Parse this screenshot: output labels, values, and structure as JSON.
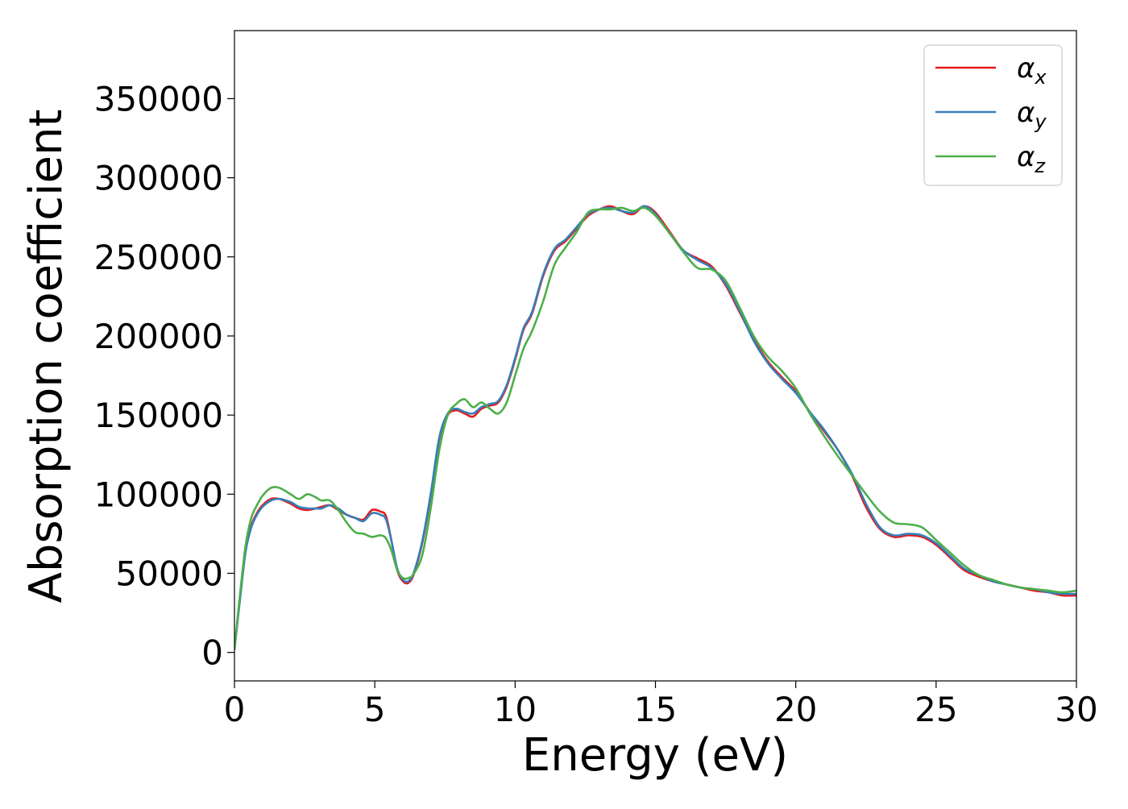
{
  "chart_data": {
    "type": "line",
    "title": "",
    "xlabel": "Energy (eV)",
    "ylabel": "Absorption coefficient",
    "xlim": [
      0,
      30
    ],
    "ylim": [
      -18000,
      393000
    ],
    "xticks": [
      0,
      5,
      10,
      15,
      20,
      25,
      30
    ],
    "yticks": [
      0,
      50000,
      100000,
      150000,
      200000,
      250000,
      300000,
      350000
    ],
    "grid": false,
    "legend_position": "top-right",
    "series": [
      {
        "name": "α_x",
        "name_base": "α",
        "name_sub": "x",
        "color": "#e41a1c",
        "x": [
          0,
          0.2,
          0.4,
          0.6,
          0.8,
          1.0,
          1.3,
          1.6,
          2.0,
          2.3,
          2.6,
          2.9,
          3.1,
          3.4,
          3.7,
          4.0,
          4.3,
          4.6,
          4.9,
          5.2,
          5.4,
          5.6,
          5.8,
          6.0,
          6.2,
          6.4,
          6.7,
          7.0,
          7.3,
          7.6,
          7.9,
          8.2,
          8.5,
          8.8,
          9.1,
          9.4,
          9.7,
          10.0,
          10.3,
          10.6,
          11.0,
          11.4,
          11.8,
          12.2,
          12.6,
          13.0,
          13.4,
          13.8,
          14.2,
          14.6,
          15.0,
          15.5,
          16.0,
          16.5,
          17.0,
          17.5,
          18.0,
          18.5,
          19.0,
          19.5,
          20.0,
          20.5,
          21.0,
          21.5,
          22.0,
          22.5,
          23.0,
          23.5,
          24.0,
          24.5,
          25.0,
          25.5,
          26.0,
          26.5,
          27.0,
          27.5,
          28.0,
          28.5,
          29.0,
          29.5,
          30.0
        ],
        "values": [
          2000,
          35000,
          65000,
          80000,
          88000,
          93000,
          97000,
          97000,
          94000,
          91000,
          90000,
          91000,
          92000,
          93000,
          90000,
          87000,
          85000,
          84000,
          90000,
          89000,
          86000,
          70000,
          52000,
          45000,
          44000,
          50000,
          70000,
          100000,
          135000,
          150000,
          153000,
          151000,
          149000,
          154000,
          156000,
          158000,
          168000,
          185000,
          204000,
          214000,
          238000,
          254000,
          260000,
          268000,
          276000,
          280000,
          282000,
          279000,
          277000,
          282000,
          278000,
          266000,
          254000,
          249000,
          244000,
          232000,
          215000,
          198000,
          184000,
          174000,
          165000,
          152000,
          140000,
          128000,
          112000,
          92000,
          78000,
          73000,
          74000,
          73000,
          68000,
          60000,
          52000,
          48000,
          45000,
          43000,
          41000,
          39000,
          38000,
          36000,
          36000
        ]
      },
      {
        "name": "α_y",
        "name_base": "α",
        "name_sub": "y",
        "color": "#377eb8",
        "x": [
          0,
          0.2,
          0.4,
          0.6,
          0.8,
          1.0,
          1.3,
          1.6,
          2.0,
          2.3,
          2.6,
          2.9,
          3.1,
          3.4,
          3.7,
          4.0,
          4.3,
          4.6,
          4.9,
          5.2,
          5.4,
          5.6,
          5.8,
          6.0,
          6.2,
          6.4,
          6.7,
          7.0,
          7.3,
          7.6,
          7.9,
          8.2,
          8.5,
          8.8,
          9.1,
          9.4,
          9.7,
          10.0,
          10.3,
          10.6,
          11.0,
          11.4,
          11.8,
          12.2,
          12.6,
          13.0,
          13.4,
          13.8,
          14.2,
          14.6,
          15.0,
          15.5,
          16.0,
          16.5,
          17.0,
          17.5,
          18.0,
          18.5,
          19.0,
          19.5,
          20.0,
          20.5,
          21.0,
          21.5,
          22.0,
          22.5,
          23.0,
          23.5,
          24.0,
          24.5,
          25.0,
          25.5,
          26.0,
          26.5,
          27.0,
          27.5,
          28.0,
          28.5,
          29.0,
          29.5,
          30.0
        ],
        "values": [
          2000,
          34000,
          64000,
          79000,
          87000,
          92000,
          96000,
          97000,
          95000,
          92000,
          91000,
          91000,
          91000,
          93000,
          91000,
          87000,
          85000,
          83000,
          88000,
          87000,
          84000,
          70000,
          53000,
          46000,
          45000,
          51000,
          71000,
          101000,
          136000,
          151000,
          154000,
          152000,
          151000,
          155000,
          157000,
          159000,
          169000,
          186000,
          205000,
          215000,
          239000,
          255000,
          261000,
          269000,
          277000,
          280000,
          281000,
          279000,
          278000,
          282000,
          277000,
          265000,
          254000,
          248000,
          243000,
          233000,
          216000,
          197000,
          183000,
          173000,
          164000,
          152000,
          141000,
          128000,
          113000,
          94000,
          79000,
          74000,
          75000,
          74000,
          69000,
          61000,
          53000,
          49000,
          45000,
          43000,
          41000,
          40000,
          38000,
          37000,
          37000
        ]
      },
      {
        "name": "α_z",
        "name_base": "α",
        "name_sub": "z",
        "color": "#4daf4a",
        "x": [
          0,
          0.2,
          0.4,
          0.6,
          0.8,
          1.0,
          1.3,
          1.6,
          2.0,
          2.3,
          2.6,
          2.9,
          3.1,
          3.4,
          3.7,
          4.0,
          4.3,
          4.6,
          4.9,
          5.2,
          5.4,
          5.6,
          5.8,
          6.0,
          6.2,
          6.4,
          6.7,
          7.0,
          7.3,
          7.6,
          7.9,
          8.2,
          8.5,
          8.8,
          9.1,
          9.4,
          9.7,
          10.0,
          10.3,
          10.6,
          11.0,
          11.4,
          11.8,
          12.2,
          12.6,
          13.0,
          13.4,
          13.8,
          14.2,
          14.6,
          15.0,
          15.5,
          16.0,
          16.5,
          17.0,
          17.5,
          18.0,
          18.5,
          19.0,
          19.5,
          20.0,
          20.5,
          21.0,
          21.5,
          22.0,
          22.5,
          23.0,
          23.5,
          24.0,
          24.5,
          25.0,
          25.5,
          26.0,
          26.5,
          27.0,
          27.5,
          28.0,
          28.5,
          29.0,
          29.5,
          30.0
        ],
        "values": [
          2000,
          37000,
          68000,
          85000,
          93000,
          99000,
          104000,
          104000,
          100000,
          97000,
          100000,
          98000,
          96000,
          96000,
          90000,
          82000,
          76000,
          75000,
          73000,
          74000,
          72000,
          64000,
          52000,
          47000,
          47000,
          50000,
          62000,
          92000,
          128000,
          150000,
          157000,
          160000,
          155000,
          158000,
          154000,
          151000,
          158000,
          175000,
          192000,
          203000,
          222000,
          245000,
          256000,
          266000,
          278000,
          280000,
          280000,
          281000,
          279000,
          281000,
          276000,
          265000,
          253000,
          243000,
          242000,
          235000,
          218000,
          200000,
          187000,
          178000,
          167000,
          151000,
          137000,
          124000,
          112000,
          100000,
          89000,
          82000,
          81000,
          79000,
          71000,
          63000,
          55000,
          49000,
          46000,
          43000,
          41000,
          40000,
          39000,
          38000,
          39000
        ]
      }
    ]
  }
}
